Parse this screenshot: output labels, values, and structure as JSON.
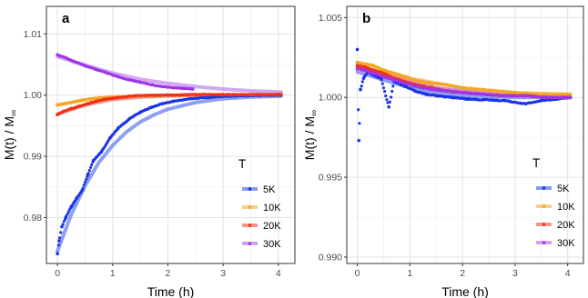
{
  "chart_data": [
    {
      "panel": "a",
      "type": "scatter",
      "xlabel": "Time (h)",
      "ylabel": "M(t) / M",
      "ylabel_sub": "∞",
      "xlim": [
        -0.2,
        4.3
      ],
      "ylim": [
        0.9725,
        1.0145
      ],
      "xticks": [
        0,
        1,
        2,
        3,
        4
      ],
      "yticks": [
        0.98,
        0.99,
        1.0,
        1.01
      ],
      "ytick_labels": [
        "0.98",
        "0.99",
        "1.00",
        "1.01"
      ],
      "grid": true,
      "legend": {
        "title": "T",
        "position": "bottom-right",
        "entries": [
          "5K",
          "10K",
          "20K",
          "30K"
        ]
      },
      "series": [
        {
          "name": "5K",
          "color": "#1a35e6",
          "points": [
            [
              0,
              0.9741
            ],
            [
              0.03,
              0.9762
            ],
            [
              0.08,
              0.9785
            ],
            [
              0.15,
              0.98
            ],
            [
              0.25,
              0.9818
            ],
            [
              0.35,
              0.9832
            ],
            [
              0.45,
              0.9845
            ],
            [
              0.55,
              0.987
            ],
            [
              0.65,
              0.9893
            ],
            [
              0.8,
              0.9908
            ],
            [
              0.95,
              0.993
            ],
            [
              1.1,
              0.9946
            ],
            [
              1.3,
              0.9961
            ],
            [
              1.5,
              0.9972
            ],
            [
              1.7,
              0.998
            ],
            [
              1.9,
              0.9986
            ],
            [
              2.1,
              0.999
            ],
            [
              2.4,
              0.9994
            ],
            [
              2.7,
              0.9996
            ],
            [
              3.0,
              0.9998
            ],
            [
              3.4,
              0.9999
            ],
            [
              3.8,
              0.99995
            ],
            [
              4.05,
              1.0
            ]
          ]
        },
        {
          "name": "10K",
          "color": "#f5a623",
          "points": [
            [
              0,
              0.9984
            ],
            [
              0.2,
              0.9987
            ],
            [
              0.4,
              0.9991
            ],
            [
              0.6,
              0.9994
            ],
            [
              0.8,
              0.9996
            ],
            [
              1.0,
              0.9997
            ],
            [
              1.3,
              0.99985
            ],
            [
              1.6,
              0.99995
            ],
            [
              2.0,
              1.0
            ],
            [
              2.5,
              1.0001
            ],
            [
              3.0,
              1.0001
            ],
            [
              3.5,
              1.0001
            ],
            [
              4.05,
              1.0001
            ]
          ]
        },
        {
          "name": "20K",
          "color": "#f0301a",
          "points": [
            [
              0,
              0.9968
            ],
            [
              0.1,
              0.9973
            ],
            [
              0.25,
              0.9978
            ],
            [
              0.4,
              0.9982
            ],
            [
              0.55,
              0.9986
            ],
            [
              0.7,
              0.999
            ],
            [
              0.85,
              0.9993
            ],
            [
              1.0,
              0.9995
            ],
            [
              1.2,
              0.9997
            ],
            [
              1.4,
              0.9999
            ],
            [
              1.6,
              0.99995
            ],
            [
              2.0,
              1.0
            ],
            [
              2.5,
              1.0001
            ],
            [
              3.0,
              1.0001
            ],
            [
              4.05,
              1.0001
            ]
          ]
        },
        {
          "name": "30K",
          "color": "#a035e6",
          "points": [
            [
              0,
              1.0066
            ],
            [
              0.05,
              1.0064
            ],
            [
              0.15,
              1.0061
            ],
            [
              0.3,
              1.0055
            ],
            [
              0.5,
              1.0048
            ],
            [
              0.7,
              1.0042
            ],
            [
              0.9,
              1.0036
            ],
            [
              1.1,
              1.003
            ],
            [
              1.3,
              1.0025
            ],
            [
              1.5,
              1.0021
            ],
            [
              1.7,
              1.0017
            ],
            [
              1.9,
              1.0014
            ],
            [
              2.1,
              1.0012
            ],
            [
              2.3,
              1.0011
            ],
            [
              2.45,
              1.001
            ]
          ]
        }
      ],
      "fits": [
        {
          "name": "5K",
          "color": "#6a80ee",
          "points": [
            [
              0,
              0.9745
            ],
            [
              0.25,
              0.9805
            ],
            [
              0.5,
              0.9852
            ],
            [
              0.75,
              0.989
            ],
            [
              1.0,
              0.9918
            ],
            [
              1.25,
              0.994
            ],
            [
              1.5,
              0.9956
            ],
            [
              1.75,
              0.9968
            ],
            [
              2.0,
              0.9977
            ],
            [
              2.5,
              0.9988
            ],
            [
              3.0,
              0.9994
            ],
            [
              3.5,
              0.9997
            ],
            [
              4.05,
              0.99985
            ]
          ]
        },
        {
          "name": "10K",
          "color": "#f7c26a",
          "points": [
            [
              0,
              0.9984
            ],
            [
              0.5,
              0.9992
            ],
            [
              1.0,
              0.9996
            ],
            [
              1.5,
              0.9998
            ],
            [
              2.0,
              0.9999
            ],
            [
              3.0,
              1.0
            ],
            [
              4.05,
              1.0
            ]
          ]
        },
        {
          "name": "20K",
          "color": "#f57a6a",
          "points": [
            [
              0,
              0.9969
            ],
            [
              0.5,
              0.9984
            ],
            [
              1.0,
              0.9993
            ],
            [
              1.5,
              0.9997
            ],
            [
              2.0,
              0.9999
            ],
            [
              3.0,
              1.0
            ],
            [
              4.05,
              1.0
            ]
          ]
        },
        {
          "name": "30K",
          "color": "#c48af0",
          "points": [
            [
              0,
              1.0063
            ],
            [
              0.5,
              1.0049
            ],
            [
              1.0,
              1.0036
            ],
            [
              1.5,
              1.0026
            ],
            [
              2.0,
              1.0019
            ],
            [
              2.5,
              1.0014
            ],
            [
              3.0,
              1.001
            ],
            [
              3.5,
              1.0007
            ],
            [
              4.05,
              1.0005
            ]
          ]
        }
      ]
    },
    {
      "panel": "b",
      "type": "scatter",
      "xlabel": "Time (h)",
      "ylabel": "M(t) / M",
      "ylabel_sub": "∞",
      "xlim": [
        -0.2,
        4.3
      ],
      "ylim": [
        0.9896,
        1.0057
      ],
      "xticks": [
        0,
        1,
        2,
        3,
        4
      ],
      "yticks": [
        0.99,
        0.995,
        1.0,
        1.005
      ],
      "ytick_labels": [
        "0.990",
        "0.995",
        "1.000",
        "1.005"
      ],
      "grid": true,
      "legend": {
        "title": "T",
        "position": "bottom-right",
        "entries": [
          "5K",
          "10K",
          "20K",
          "30K"
        ]
      },
      "series": [
        {
          "name": "5K",
          "color": "#1a35e6",
          "points": [
            [
              0,
              1.003
            ],
            [
              0.03,
              0.9973
            ],
            [
              0.06,
              1.0005
            ],
            [
              0.12,
              1.0012
            ],
            [
              0.2,
              1.0016
            ],
            [
              0.3,
              1.0014
            ],
            [
              0.45,
              1.0012
            ],
            [
              0.6,
              0.9994
            ],
            [
              0.7,
              1.001
            ],
            [
              0.9,
              1.0007
            ],
            [
              1.1,
              1.0004
            ],
            [
              1.3,
              1.0002
            ],
            [
              1.5,
              1.0001
            ],
            [
              1.8,
              1.0
            ],
            [
              2.1,
              0.9999
            ],
            [
              2.4,
              0.99985
            ],
            [
              2.8,
              0.9998
            ],
            [
              3.2,
              0.9996
            ],
            [
              3.5,
              0.9998
            ],
            [
              3.8,
              0.9999
            ],
            [
              4.05,
              1.0
            ]
          ]
        },
        {
          "name": "10K",
          "color": "#f5a623",
          "points": [
            [
              0,
              1.0022
            ],
            [
              0.15,
              1.0021
            ],
            [
              0.3,
              1.002
            ],
            [
              0.5,
              1.0017
            ],
            [
              0.7,
              1.0015
            ],
            [
              0.9,
              1.0013
            ],
            [
              1.1,
              1.0011
            ],
            [
              1.4,
              1.0009
            ],
            [
              1.7,
              1.0008
            ],
            [
              2.0,
              1.0006
            ],
            [
              2.3,
              1.0005
            ],
            [
              2.6,
              1.0004
            ],
            [
              3.0,
              1.0003
            ],
            [
              3.4,
              1.0002
            ],
            [
              3.8,
              1.0002
            ],
            [
              4.05,
              1.0002
            ]
          ]
        },
        {
          "name": "20K",
          "color": "#f0301a",
          "points": [
            [
              0,
              1.002
            ],
            [
              0.15,
              1.0019
            ],
            [
              0.3,
              1.0017
            ],
            [
              0.5,
              1.0015
            ],
            [
              0.7,
              1.0012
            ],
            [
              0.9,
              1.001
            ],
            [
              1.1,
              1.0008
            ],
            [
              1.4,
              1.0006
            ],
            [
              1.7,
              1.0004
            ],
            [
              2.0,
              1.0003
            ],
            [
              2.4,
              1.0002
            ],
            [
              2.8,
              1.0001
            ],
            [
              3.2,
              1.0001
            ],
            [
              3.6,
              1.0
            ],
            [
              4.05,
              1.0
            ]
          ]
        },
        {
          "name": "30K",
          "color": "#a035e6",
          "points": [
            [
              0,
              1.0018
            ],
            [
              0.15,
              1.0017
            ],
            [
              0.3,
              1.0015
            ],
            [
              0.5,
              1.0013
            ],
            [
              0.7,
              1.0011
            ],
            [
              0.9,
              1.0009
            ],
            [
              1.1,
              1.0007
            ],
            [
              1.4,
              1.0005
            ],
            [
              1.7,
              1.0004
            ],
            [
              2.0,
              1.0003
            ],
            [
              2.4,
              1.0002
            ],
            [
              2.8,
              1.0001
            ],
            [
              3.2,
              1.0001
            ],
            [
              3.6,
              1.0
            ],
            [
              4.05,
              1.0
            ]
          ]
        }
      ],
      "fits": [
        {
          "name": "5K",
          "color": "#6a80ee",
          "points": [
            [
              0,
              1.0016
            ],
            [
              0.5,
              1.0011
            ],
            [
              1.0,
              1.0006
            ],
            [
              1.5,
              1.0003
            ],
            [
              2.0,
              1.0001
            ],
            [
              3.0,
              1.0
            ],
            [
              4.05,
              1.0
            ]
          ]
        },
        {
          "name": "10K",
          "color": "#f7c26a",
          "points": [
            [
              0,
              1.0021
            ],
            [
              0.5,
              1.0017
            ],
            [
              1.0,
              1.0012
            ],
            [
              1.5,
              1.0009
            ],
            [
              2.0,
              1.0006
            ],
            [
              3.0,
              1.0003
            ],
            [
              4.05,
              1.0002
            ]
          ]
        },
        {
          "name": "20K",
          "color": "#f57a6a",
          "points": [
            [
              0,
              1.0019
            ],
            [
              0.5,
              1.0015
            ],
            [
              1.0,
              1.001
            ],
            [
              1.5,
              1.0006
            ],
            [
              2.0,
              1.0004
            ],
            [
              3.0,
              1.0001
            ],
            [
              4.05,
              1.0
            ]
          ]
        },
        {
          "name": "30K",
          "color": "#c48af0",
          "points": [
            [
              0,
              1.0017
            ],
            [
              0.5,
              1.0013
            ],
            [
              1.0,
              1.0009
            ],
            [
              1.5,
              1.0006
            ],
            [
              2.0,
              1.0004
            ],
            [
              3.0,
              1.0001
            ],
            [
              4.05,
              1.0
            ]
          ]
        }
      ]
    }
  ]
}
